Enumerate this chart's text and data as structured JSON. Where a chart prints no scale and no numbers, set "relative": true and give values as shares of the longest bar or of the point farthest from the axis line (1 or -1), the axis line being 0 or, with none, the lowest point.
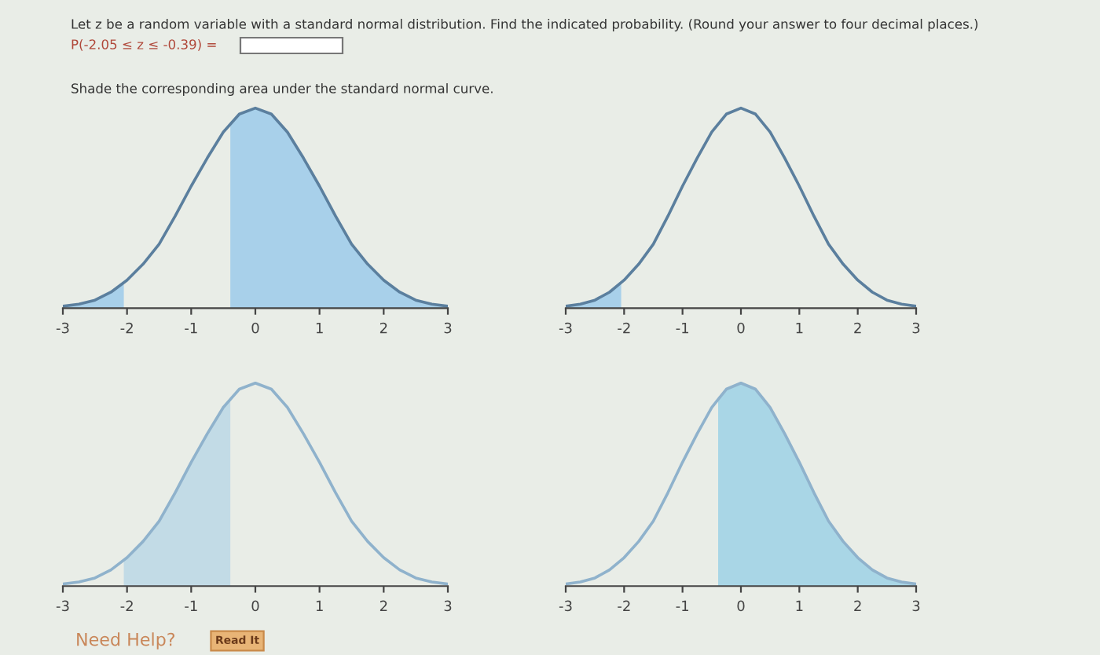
{
  "chart_data": [
    {
      "type": "line",
      "title": "Let z be a random variable with a standard normal distribution. Find the indicated probability. (Round your answer to four decimal places.)",
      "subtitle": "P(-2.05 ≤ z ≤ -0.39) =",
      "annotations": [
        "Shade the corresponding area under the standard normal curve."
      ],
      "relative": true,
      "tick_labels": "x",
      "x": [
        -3,
        -2.75,
        -2.5,
        -2.25,
        -2,
        -1.75,
        -1.5,
        -1.25,
        -1,
        -0.75,
        -0.5,
        -0.25,
        0,
        0.25,
        0.5,
        0.75,
        1,
        1.25,
        1.5,
        1.75,
        2,
        2.25,
        2.5,
        2.75,
        3
      ],
      "xlim": [
        -3,
        3
      ],
      "xticks": [
        -3,
        -2,
        -1,
        0,
        1,
        2,
        3
      ],
      "series": [
        {
          "type": "area",
          "color": "#a8d0ea",
          "x": [
            -3,
            -2.75,
            -2.5,
            -2.25,
            -2.05
          ],
          "values": [
            0.01,
            0.02,
            0.04,
            0.08,
            0.12
          ]
        },
        {
          "type": "area",
          "color": "#a8d0ea",
          "x": [
            -0.39,
            -0.25,
            0,
            0.25,
            0.5,
            0.75,
            1,
            1.25,
            1.5,
            1.75,
            2,
            2.25,
            2.5,
            2.75,
            3
          ],
          "values": [
            0.93,
            0.97,
            1,
            0.97,
            0.88,
            0.75,
            0.61,
            0.46,
            0.32,
            0.22,
            0.14,
            0.08,
            0.04,
            0.02,
            0.01
          ]
        },
        {
          "color": "#5b7f9e",
          "values": [
            0.01,
            0.02,
            0.04,
            0.08,
            0.14,
            0.22,
            0.32,
            0.46,
            0.61,
            0.75,
            0.88,
            0.97,
            1,
            0.97,
            0.88,
            0.75,
            0.61,
            0.46,
            0.32,
            0.22,
            0.14,
            0.08,
            0.04,
            0.02,
            0.01
          ]
        }
      ]
    },
    {
      "type": "line",
      "relative": true,
      "tick_labels": "x",
      "x": [
        -3,
        -2.75,
        -2.5,
        -2.25,
        -2,
        -1.75,
        -1.5,
        -1.25,
        -1,
        -0.75,
        -0.5,
        -0.25,
        0,
        0.25,
        0.5,
        0.75,
        1,
        1.25,
        1.5,
        1.75,
        2,
        2.25,
        2.5,
        2.75,
        3
      ],
      "xlim": [
        -3,
        3
      ],
      "xticks": [
        -3,
        -2,
        -1,
        0,
        1,
        2,
        3
      ],
      "series": [
        {
          "type": "area",
          "color": "#a8d0ea",
          "x": [
            -3,
            -2.75,
            -2.5,
            -2.25,
            -2.05
          ],
          "values": [
            0.01,
            0.02,
            0.04,
            0.08,
            0.12
          ]
        },
        {
          "color": "#5b7f9e",
          "values": [
            0.01,
            0.02,
            0.04,
            0.08,
            0.14,
            0.22,
            0.32,
            0.46,
            0.61,
            0.75,
            0.88,
            0.97,
            1,
            0.97,
            0.88,
            0.75,
            0.61,
            0.46,
            0.32,
            0.22,
            0.14,
            0.08,
            0.04,
            0.02,
            0.01
          ]
        }
      ]
    },
    {
      "type": "line",
      "relative": true,
      "tick_labels": "x",
      "annotations": [
        "Need Help?",
        "Read It"
      ],
      "x": [
        -3,
        -2.75,
        -2.5,
        -2.25,
        -2,
        -1.75,
        -1.5,
        -1.25,
        -1,
        -0.75,
        -0.5,
        -0.25,
        0,
        0.25,
        0.5,
        0.75,
        1,
        1.25,
        1.5,
        1.75,
        2,
        2.25,
        2.5,
        2.75,
        3
      ],
      "xlim": [
        -3,
        3
      ],
      "xticks": [
        -3,
        -2,
        -1,
        0,
        1,
        2,
        3
      ],
      "series": [
        {
          "type": "area",
          "color": "#c2dbe6",
          "x": [
            -2.05,
            -2,
            -1.75,
            -1.5,
            -1.25,
            -1,
            -0.75,
            -0.5,
            -0.39
          ],
          "values": [
            0.12,
            0.14,
            0.22,
            0.32,
            0.46,
            0.61,
            0.75,
            0.88,
            0.93
          ]
        },
        {
          "color": "#8fb2cc",
          "values": [
            0.01,
            0.02,
            0.04,
            0.08,
            0.14,
            0.22,
            0.32,
            0.46,
            0.61,
            0.75,
            0.88,
            0.97,
            1,
            0.97,
            0.88,
            0.75,
            0.61,
            0.46,
            0.32,
            0.22,
            0.14,
            0.08,
            0.04,
            0.02,
            0.01
          ]
        }
      ]
    },
    {
      "type": "line",
      "relative": true,
      "tick_labels": "x",
      "x": [
        -3,
        -2.75,
        -2.5,
        -2.25,
        -2,
        -1.75,
        -1.5,
        -1.25,
        -1,
        -0.75,
        -0.5,
        -0.25,
        0,
        0.25,
        0.5,
        0.75,
        1,
        1.25,
        1.5,
        1.75,
        2,
        2.25,
        2.5,
        2.75,
        3
      ],
      "xlim": [
        -3,
        3
      ],
      "xticks": [
        -3,
        -2,
        -1,
        0,
        1,
        2,
        3
      ],
      "series": [
        {
          "type": "area",
          "color": "#a9d6e6",
          "x": [
            -0.39,
            -0.25,
            0,
            0.25,
            0.5,
            0.75,
            1,
            1.25,
            1.5,
            1.75,
            2,
            2.25,
            2.5,
            2.75,
            3
          ],
          "values": [
            0.93,
            0.97,
            1,
            0.97,
            0.88,
            0.75,
            0.61,
            0.46,
            0.32,
            0.22,
            0.14,
            0.08,
            0.04,
            0.02,
            0.01
          ]
        },
        {
          "color": "#8fb2cc",
          "values": [
            0.01,
            0.02,
            0.04,
            0.08,
            0.14,
            0.22,
            0.32,
            0.46,
            0.61,
            0.75,
            0.88,
            0.97,
            1,
            0.97,
            0.88,
            0.75,
            0.61,
            0.46,
            0.32,
            0.22,
            0.14,
            0.08,
            0.04,
            0.02,
            0.01
          ]
        }
      ]
    }
  ]
}
